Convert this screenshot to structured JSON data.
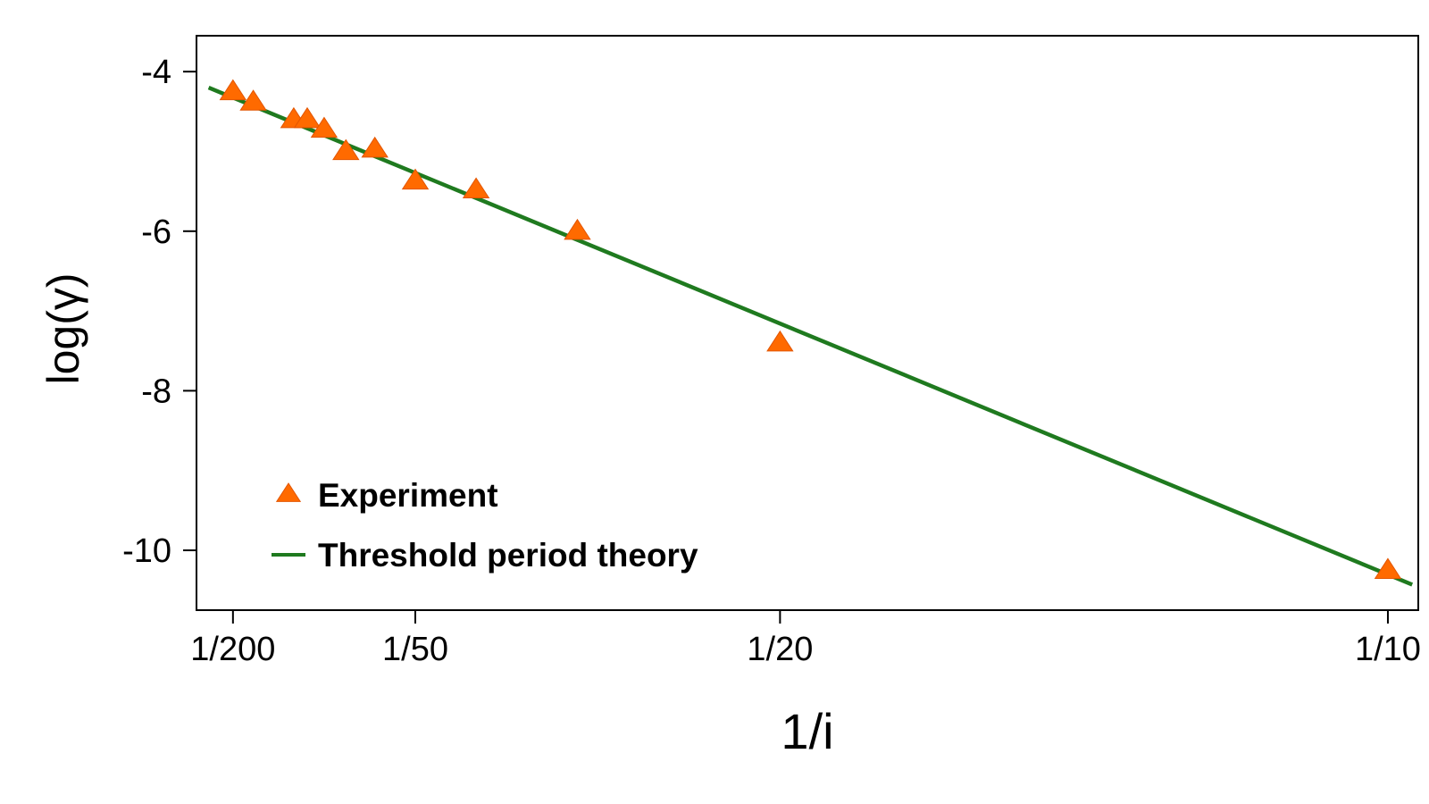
{
  "chart_data": {
    "type": "scatter",
    "xlabel": "1/i",
    "ylabel": "log(γ)",
    "x_scale": "reciprocal",
    "xlim": [
      0.002,
      0.1025
    ],
    "ylim": [
      -10.75,
      -3.55
    ],
    "x_ticks": [
      {
        "value": 0.005,
        "label": "1/200"
      },
      {
        "value": 0.02,
        "label": "1/50"
      },
      {
        "value": 0.05,
        "label": "1/20"
      },
      {
        "value": 0.1,
        "label": "1/10"
      }
    ],
    "y_ticks": [
      {
        "value": -4,
        "label": "-4"
      },
      {
        "value": -6,
        "label": "-6"
      },
      {
        "value": -8,
        "label": "-8"
      },
      {
        "value": -10,
        "label": "-10"
      }
    ],
    "grid": false,
    "legend_position": "bottom-left",
    "series": [
      {
        "name": "Experiment",
        "kind": "markers",
        "marker": "triangle",
        "color": "#ff6a00",
        "x": [
          0.005,
          0.00667,
          0.01,
          0.01111,
          0.0125,
          0.01429,
          0.01667,
          0.02,
          0.025,
          0.03333,
          0.05,
          0.1
        ],
        "y": [
          -4.25,
          -4.38,
          -4.6,
          -4.6,
          -4.72,
          -5.0,
          -4.97,
          -5.37,
          -5.48,
          -6.0,
          -7.4,
          -10.25
        ]
      },
      {
        "name": "Threshold period theory",
        "kind": "line",
        "color": "#1f7a1f",
        "x": [
          0.003,
          0.102
        ],
        "y": [
          -4.2,
          -10.43
        ]
      }
    ]
  }
}
